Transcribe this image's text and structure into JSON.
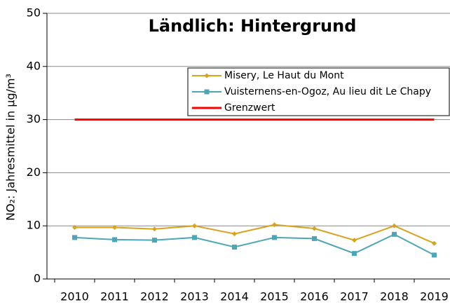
{
  "chart_data": {
    "type": "line",
    "title": "Ländlich: Hintergrund",
    "y_label": "NO₂: Jahresmittel in µg/m³",
    "categories": [
      "2010",
      "2011",
      "2012",
      "2013",
      "2014",
      "2015",
      "2016",
      "2017",
      "2018",
      "2019"
    ],
    "series": [
      {
        "name": "Misery, Le Haut du Mont",
        "color": "#d9a21b",
        "marker": "diamond",
        "values": [
          9.7,
          9.7,
          9.4,
          10.0,
          8.5,
          10.2,
          9.5,
          7.3,
          10.0,
          6.7
        ]
      },
      {
        "name": "Vuisternens-en-Ogoz, Au lieu dit Le Chapy",
        "color": "#4da6b8",
        "marker": "square",
        "values": [
          7.8,
          7.4,
          7.3,
          7.8,
          6.0,
          7.8,
          7.6,
          4.8,
          8.4,
          4.5
        ]
      },
      {
        "name": "Grenzwert",
        "color": "#ff0000",
        "marker": "none",
        "values": [
          30,
          30,
          30,
          30,
          30,
          30,
          30,
          30,
          30,
          30
        ]
      }
    ],
    "ylim": [
      0,
      50
    ],
    "yticks": [
      0,
      10,
      20,
      30,
      40,
      50
    ],
    "grid": true
  }
}
